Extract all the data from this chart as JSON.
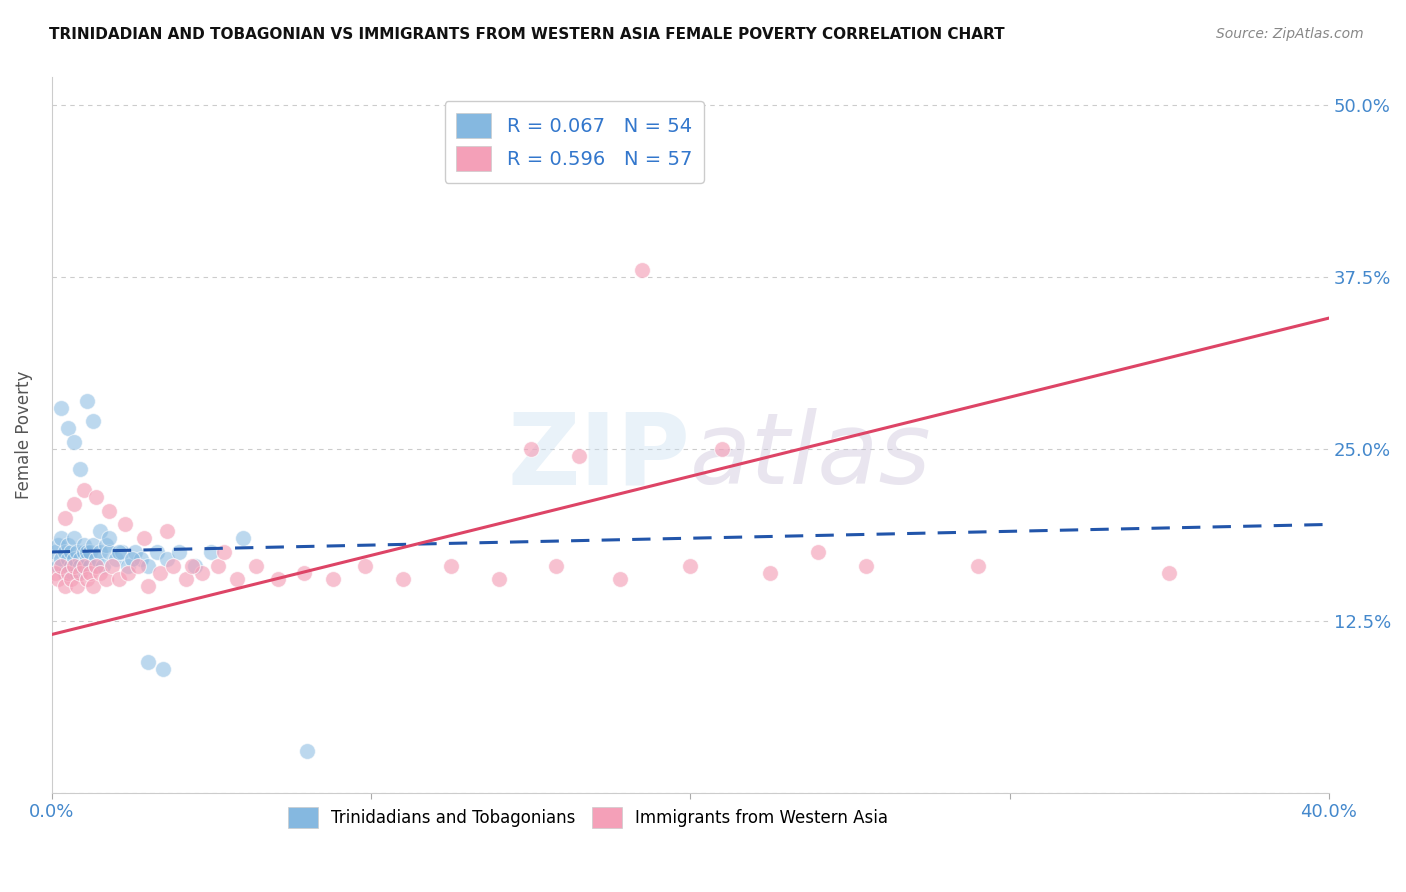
{
  "title": "TRINIDADIAN AND TOBAGONIAN VS IMMIGRANTS FROM WESTERN ASIA FEMALE POVERTY CORRELATION CHART",
  "source": "Source: ZipAtlas.com",
  "ylabel": "Female Poverty",
  "watermark_zip": "ZIP",
  "watermark_atlas": "atlas",
  "series1_color": "#85b8e0",
  "series1_line_color": "#2255aa",
  "series1_line_style": "--",
  "series2_color": "#f4a0b8",
  "series2_line_color": "#dd4466",
  "series2_line_style": "-",
  "background_color": "#ffffff",
  "grid_color": "#cccccc",
  "title_color": "#111111",
  "axis_label_color": "#4488cc",
  "legend_text_color": "#3377cc",
  "trinidadian_x": [
    0.001,
    0.002,
    0.002,
    0.003,
    0.003,
    0.004,
    0.004,
    0.005,
    0.005,
    0.006,
    0.006,
    0.007,
    0.007,
    0.008,
    0.008,
    0.009,
    0.009,
    0.01,
    0.01,
    0.011,
    0.011,
    0.012,
    0.012,
    0.013,
    0.014,
    0.015,
    0.016,
    0.017,
    0.018,
    0.02,
    0.022,
    0.024,
    0.026,
    0.028,
    0.03,
    0.033,
    0.036,
    0.04,
    0.045,
    0.05,
    0.003,
    0.005,
    0.007,
    0.009,
    0.011,
    0.013,
    0.015,
    0.018,
    0.021,
    0.025,
    0.03,
    0.035,
    0.06,
    0.08
  ],
  "trinidadian_y": [
    0.175,
    0.18,
    0.165,
    0.17,
    0.185,
    0.16,
    0.175,
    0.17,
    0.18,
    0.165,
    0.175,
    0.17,
    0.185,
    0.16,
    0.175,
    0.17,
    0.165,
    0.175,
    0.18,
    0.17,
    0.175,
    0.165,
    0.175,
    0.18,
    0.17,
    0.175,
    0.165,
    0.18,
    0.175,
    0.17,
    0.175,
    0.165,
    0.175,
    0.17,
    0.165,
    0.175,
    0.17,
    0.175,
    0.165,
    0.175,
    0.28,
    0.265,
    0.255,
    0.235,
    0.285,
    0.27,
    0.19,
    0.185,
    0.175,
    0.17,
    0.095,
    0.09,
    0.185,
    0.03
  ],
  "western_asia_x": [
    0.001,
    0.002,
    0.003,
    0.004,
    0.005,
    0.006,
    0.007,
    0.008,
    0.009,
    0.01,
    0.011,
    0.012,
    0.013,
    0.014,
    0.015,
    0.017,
    0.019,
    0.021,
    0.024,
    0.027,
    0.03,
    0.034,
    0.038,
    0.042,
    0.047,
    0.052,
    0.058,
    0.064,
    0.071,
    0.079,
    0.088,
    0.098,
    0.11,
    0.125,
    0.14,
    0.158,
    0.178,
    0.2,
    0.225,
    0.255,
    0.004,
    0.007,
    0.01,
    0.014,
    0.018,
    0.023,
    0.029,
    0.036,
    0.044,
    0.054,
    0.15,
    0.165,
    0.185,
    0.21,
    0.24,
    0.29,
    0.35
  ],
  "western_asia_y": [
    0.16,
    0.155,
    0.165,
    0.15,
    0.16,
    0.155,
    0.165,
    0.15,
    0.16,
    0.165,
    0.155,
    0.16,
    0.15,
    0.165,
    0.16,
    0.155,
    0.165,
    0.155,
    0.16,
    0.165,
    0.15,
    0.16,
    0.165,
    0.155,
    0.16,
    0.165,
    0.155,
    0.165,
    0.155,
    0.16,
    0.155,
    0.165,
    0.155,
    0.165,
    0.155,
    0.165,
    0.155,
    0.165,
    0.16,
    0.165,
    0.2,
    0.21,
    0.22,
    0.215,
    0.205,
    0.195,
    0.185,
    0.19,
    0.165,
    0.175,
    0.25,
    0.245,
    0.38,
    0.25,
    0.175,
    0.165,
    0.16
  ],
  "xlim": [
    0.0,
    0.4
  ],
  "ylim": [
    0.0,
    0.52
  ],
  "line1_x0": 0.0,
  "line1_x1": 0.4,
  "line1_y0": 0.175,
  "line1_y1": 0.195,
  "line2_x0": 0.0,
  "line2_x1": 0.4,
  "line2_y0": 0.115,
  "line2_y1": 0.345
}
